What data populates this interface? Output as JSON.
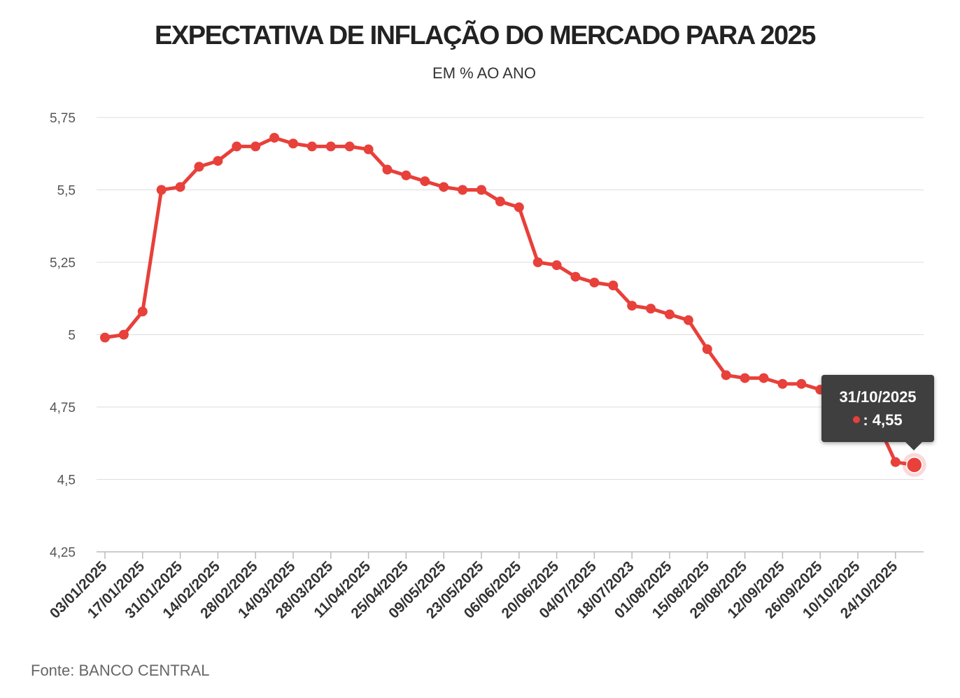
{
  "chart_data": {
    "type": "line",
    "title": "EXPECTATIVA DE INFLAÇÃO DO MERCADO PARA 2025",
    "subtitle": "EM % AO ANO",
    "source": "Fonte: BANCO CENTRAL",
    "xlabel": "",
    "ylabel": "",
    "ylim": [
      4.25,
      5.75
    ],
    "yticks": [
      "4,25",
      "4,5",
      "4,75",
      "5",
      "5,25",
      "5,5",
      "5,75"
    ],
    "ytick_values": [
      4.25,
      4.5,
      4.75,
      5.0,
      5.25,
      5.5,
      5.75
    ],
    "xtick_labels": [
      "03/01/2025",
      "17/01/2025",
      "31/01/2025",
      "14/02/2025",
      "28/02/2025",
      "14/03/2025",
      "28/03/2025",
      "11/04/2025",
      "25/04/2025",
      "09/05/2025",
      "23/05/2025",
      "06/06/2025",
      "20/06/2025",
      "04/07/2025",
      "18/07/2023",
      "01/08/2025",
      "15/08/2025",
      "29/08/2025",
      "12/09/2025",
      "26/09/2025",
      "10/10/2025",
      "24/10/2025"
    ],
    "grid": true,
    "line_color": "#e8403a",
    "series": [
      {
        "values": [
          4.99,
          5.0,
          5.08,
          5.5,
          5.51,
          5.58,
          5.6,
          5.65,
          5.65,
          5.68,
          5.66,
          5.65,
          5.65,
          5.65,
          5.64,
          5.57,
          5.55,
          5.53,
          5.51,
          5.5,
          5.5,
          5.46,
          5.44,
          5.25,
          5.24,
          5.2,
          5.18,
          5.17,
          5.1,
          5.09,
          5.07,
          5.05,
          4.95,
          4.86,
          4.85,
          4.85,
          4.83,
          4.83,
          4.81,
          4.79,
          4.72,
          4.7,
          4.56,
          4.55
        ]
      }
    ],
    "tooltip": {
      "date": "31/10/2025",
      "value_text": ": 4,55"
    }
  }
}
